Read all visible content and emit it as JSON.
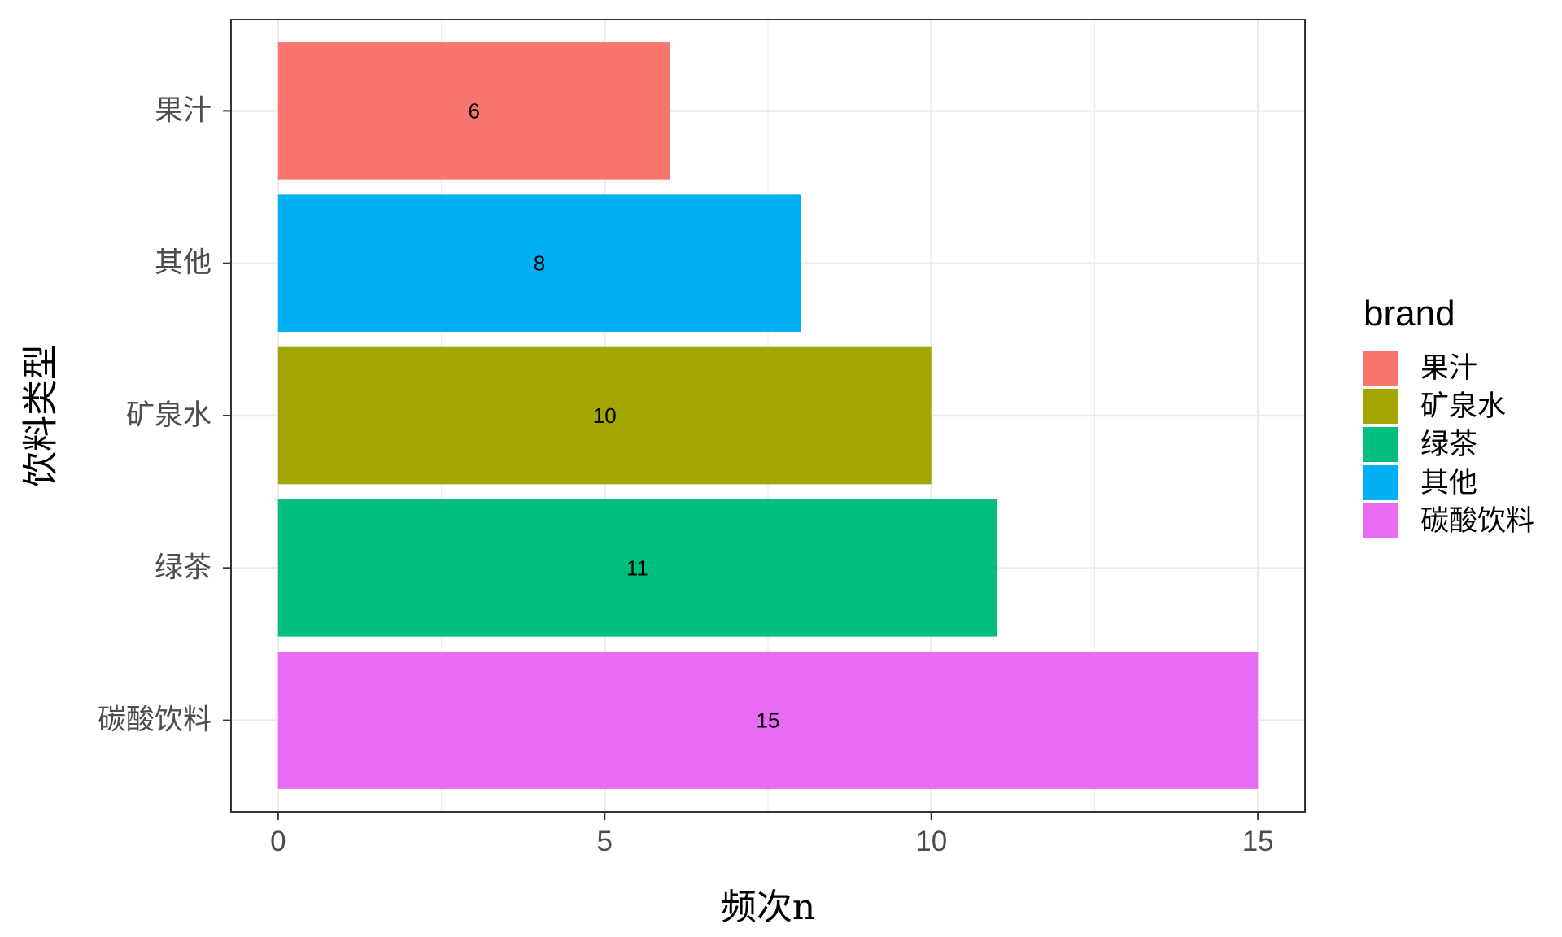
{
  "chart_data": {
    "type": "bar",
    "orientation": "horizontal",
    "categories": [
      "碳酸饮料",
      "绿茶",
      "矿泉水",
      "其他",
      "果汁"
    ],
    "values": [
      15,
      11,
      10,
      8,
      6
    ],
    "colors": [
      "#E76BF3",
      "#00BF7D",
      "#A3A500",
      "#00B0F6",
      "#F8766D"
    ],
    "data_labels": [
      "15",
      "11",
      "10",
      "8",
      "6"
    ],
    "xlabel": "频次n",
    "ylabel": "饮料类型",
    "xlim": [
      -0.72,
      15.72
    ],
    "xticks": [
      0,
      5,
      10,
      15
    ],
    "xtick_labels": [
      "0",
      "5",
      "10",
      "15"
    ],
    "grid": true,
    "legend": {
      "title": "brand",
      "position": "right",
      "entries": [
        {
          "label": "果汁",
          "color": "#F8766D"
        },
        {
          "label": "矿泉水",
          "color": "#A3A500"
        },
        {
          "label": "绿茶",
          "color": "#00BF7D"
        },
        {
          "label": "其他",
          "color": "#00B0F6"
        },
        {
          "label": "碳酸饮料",
          "color": "#E76BF3"
        }
      ]
    }
  }
}
